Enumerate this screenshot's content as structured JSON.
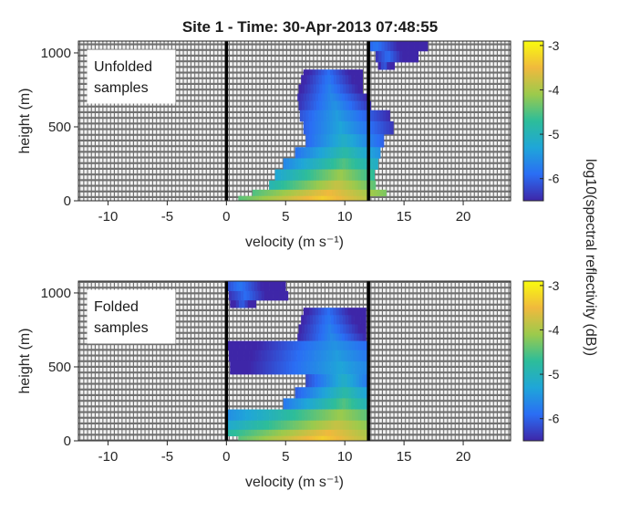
{
  "figure_title": "Site 1 - Time: 30-Apr-2013 07:48:55",
  "colorbar_label": "log10(spectral reflectivity (dB))",
  "colormap": [
    "#3e26a8",
    "#2a6ef4",
    "#1fa6d8",
    "#2dbd9a",
    "#9cca4c",
    "#f0b93d",
    "#f9fb0e"
  ],
  "background_color": "#f0f0f0",
  "chart_data": [
    {
      "type": "heatmap",
      "annotation": [
        "Unfolded",
        "samples"
      ],
      "xlabel": "velocity (m s⁻¹)",
      "ylabel": "height (m)",
      "xlim": [
        -12.5,
        24
      ],
      "ylim": [
        0,
        1080
      ],
      "xticks": [
        -10,
        -5,
        0,
        5,
        10,
        15,
        20
      ],
      "yticks": [
        0,
        500,
        1000
      ],
      "nyquist_lines": [
        0,
        12
      ],
      "clim": [
        -6.5,
        -2.9
      ],
      "cticks": [
        -6,
        -5,
        -4,
        -3
      ],
      "rows": [
        {
          "h": 1050,
          "l": 12.1,
          "r": 17.0,
          "c": 12.5,
          "m": -5.8
        },
        {
          "h": 975,
          "l": 12.6,
          "r": 16.2,
          "c": 13.5,
          "m": -5.9
        },
        {
          "h": 900,
          "l": 12.8,
          "r": 14.2,
          "c": 13.2,
          "m": -6.0
        },
        {
          "h": 875,
          "l": 6.5,
          "r": 11.5,
          "c": 8.5,
          "m": -5.9
        },
        {
          "h": 825,
          "l": 6.3,
          "r": 11.5,
          "c": 8.5,
          "m": -5.8
        },
        {
          "h": 750,
          "l": 6.1,
          "r": 11.5,
          "c": 8.6,
          "m": -5.7
        },
        {
          "h": 700,
          "l": 6.0,
          "r": 12.0,
          "c": 8.8,
          "m": -5.6
        },
        {
          "h": 650,
          "l": 6.1,
          "r": 12.2,
          "c": 9.0,
          "m": -5.5
        },
        {
          "h": 575,
          "l": 6.2,
          "r": 13.8,
          "c": 9.2,
          "m": -5.4
        },
        {
          "h": 500,
          "l": 6.5,
          "r": 14.1,
          "c": 9.5,
          "m": -5.3
        },
        {
          "h": 400,
          "l": 6.7,
          "r": 13.3,
          "c": 9.8,
          "m": -5.1
        },
        {
          "h": 325,
          "l": 5.8,
          "r": 13.0,
          "c": 9.9,
          "m": -4.8
        },
        {
          "h": 250,
          "l": 4.8,
          "r": 12.8,
          "c": 9.8,
          "m": -4.5
        },
        {
          "h": 175,
          "l": 4.1,
          "r": 12.5,
          "c": 9.5,
          "m": -4.1
        },
        {
          "h": 100,
          "l": 3.6,
          "r": 12.6,
          "c": 9.2,
          "m": -3.8
        },
        {
          "h": 50,
          "l": 2.2,
          "r": 13.5,
          "c": 8.5,
          "m": -3.5
        },
        {
          "h": 15,
          "l": 1.0,
          "r": 12.0,
          "c": 8.0,
          "m": -3.3
        }
      ]
    },
    {
      "type": "heatmap",
      "annotation": [
        "Folded",
        "samples"
      ],
      "xlabel": "velocity (m s⁻¹)",
      "ylabel": "height (m)",
      "xlim": [
        -12.5,
        24
      ],
      "ylim": [
        0,
        1080
      ],
      "xticks": [
        -10,
        -5,
        0,
        5,
        10,
        15,
        20
      ],
      "yticks": [
        0,
        500,
        1000
      ],
      "nyquist_lines": [
        0,
        12
      ],
      "clim": [
        -6.5,
        -2.9
      ],
      "cticks": [
        -6,
        -5,
        -4,
        -3
      ],
      "rows": [
        {
          "h": 1050,
          "l": 0.1,
          "r": 5.0,
          "c": 1.0,
          "m": -5.8
        },
        {
          "h": 975,
          "l": 0.2,
          "r": 5.2,
          "c": 1.5,
          "m": -5.9
        },
        {
          "h": 925,
          "l": 0.3,
          "r": 2.5,
          "c": 1.2,
          "m": -6.0
        },
        {
          "h": 875,
          "l": 6.5,
          "r": 11.8,
          "c": 8.5,
          "m": -5.9
        },
        {
          "h": 825,
          "l": 6.3,
          "r": 11.8,
          "c": 8.5,
          "m": -5.8
        },
        {
          "h": 750,
          "l": 6.1,
          "r": 11.8,
          "c": 8.6,
          "m": -5.7
        },
        {
          "h": 700,
          "l": 6.0,
          "r": 11.8,
          "c": 8.8,
          "m": -5.6
        },
        {
          "h": 650,
          "l": 0.1,
          "r": 11.9,
          "c": 9.0,
          "m": -5.5
        },
        {
          "h": 575,
          "l": 0.2,
          "r": 11.9,
          "c": 9.2,
          "m": -5.4
        },
        {
          "h": 500,
          "l": 0.3,
          "r": 11.9,
          "c": 9.5,
          "m": -5.3
        },
        {
          "h": 400,
          "l": 6.7,
          "r": 11.9,
          "c": 9.8,
          "m": -5.1
        },
        {
          "h": 325,
          "l": 5.8,
          "r": 11.9,
          "c": 9.9,
          "m": -4.8
        },
        {
          "h": 250,
          "l": 4.8,
          "r": 11.9,
          "c": 9.8,
          "m": -4.5
        },
        {
          "h": 175,
          "l": 0.1,
          "r": 11.9,
          "c": 9.5,
          "m": -4.1
        },
        {
          "h": 100,
          "l": 0.1,
          "r": 11.9,
          "c": 9.2,
          "m": -3.8
        },
        {
          "h": 50,
          "l": 0.1,
          "r": 11.9,
          "c": 8.5,
          "m": -3.5
        },
        {
          "h": 15,
          "l": 1.0,
          "r": 11.9,
          "c": 8.0,
          "m": -3.3
        }
      ]
    }
  ]
}
